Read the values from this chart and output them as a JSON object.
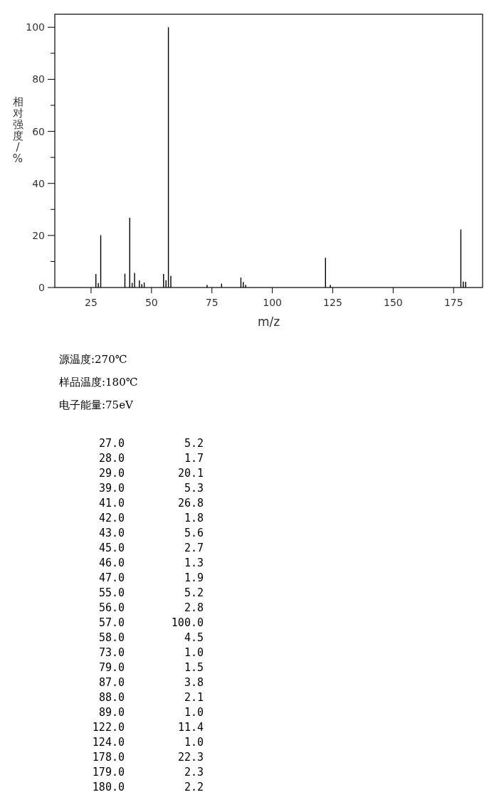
{
  "chart_data": {
    "type": "bar",
    "xlabel": "m/z",
    "ylabel": "相对强度/%",
    "annotations": [
      "源温度:270℃",
      "样品温度:180℃",
      "电子能量:75eV",
      "27.0",
      "5.2",
      "28.0",
      "1.7",
      "29.0",
      "20.1",
      "39.0",
      "5.3",
      "41.0",
      "26.8",
      "42.0",
      "1.8",
      "43.0",
      "5.6",
      "45.0",
      "2.7",
      "46.0",
      "1.3",
      "47.0",
      "1.9",
      "55.0",
      "5.2",
      "56.0",
      "2.8",
      "57.0",
      "100.0",
      "58.0",
      "4.5",
      "73.0",
      "1.0",
      "79.0",
      "1.5",
      "87.0",
      "3.8",
      "88.0",
      "2.1",
      "89.0",
      "1.0",
      "122.0",
      "11.4",
      "124.0",
      "1.0",
      "178.0",
      "22.3",
      "179.0",
      "2.3",
      "180.0",
      "2.2"
    ],
    "x": [
      27,
      28,
      29,
      39,
      41,
      42,
      43,
      45,
      46,
      47,
      55,
      56,
      57,
      58,
      73,
      79,
      87,
      88,
      89,
      122,
      124,
      178,
      179,
      180
    ],
    "series": [
      {
        "color": "#000000",
        "values": [
          5.2,
          1.7,
          20.1,
          5.3,
          26.8,
          1.8,
          5.6,
          2.7,
          1.3,
          1.9,
          5.2,
          2.8,
          100,
          4.5,
          1.0,
          1.5,
          3.8,
          2.1,
          1.0,
          11.4,
          1.0,
          22.3,
          2.3,
          2.2
        ]
      }
    ],
    "xlim": [
      10,
      187
    ],
    "ylim": [
      0,
      105
    ],
    "xticks": [
      25,
      50,
      75,
      100,
      125,
      150,
      175
    ],
    "yticks": [
      0,
      {
        "value": 10,
        "label": null
      },
      20,
      {
        "value": 30,
        "label": null
      },
      40,
      {
        "value": 50,
        "label": null
      },
      60,
      {
        "value": 70,
        "label": null
      },
      80,
      {
        "value": 90,
        "label": null
      },
      100
    ]
  }
}
